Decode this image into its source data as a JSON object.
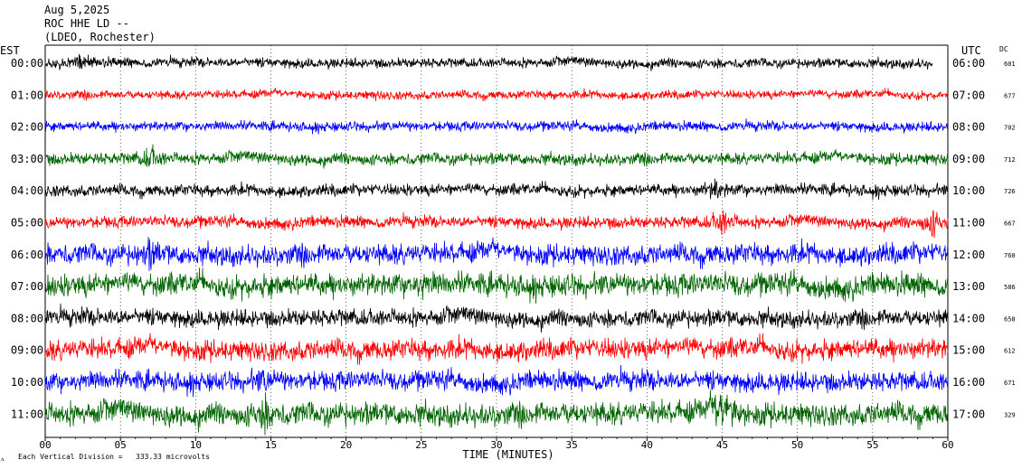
{
  "header": {
    "date": "Aug 5,2025",
    "station": "ROC HHE LD --",
    "network": "(LDEO, Rochester)"
  },
  "left_axis_label": "EST",
  "right_axis_label": "UTC",
  "dc_label": "DC",
  "footer": {
    "scale_prefix": "Each Vertical Division =",
    "scale_value": "333.33 microvolts"
  },
  "colors": {
    "trace_cycle": [
      "#000000",
      "#ff0000",
      "#0000ff",
      "#006400"
    ],
    "grid": "#000000",
    "background": "#ffffff"
  },
  "chart_data": {
    "type": "line",
    "title": "",
    "xlabel": "TIME (MINUTES)",
    "xlim": [
      0,
      60
    ],
    "x_ticks": [
      {
        "value": 0,
        "label": "00"
      },
      {
        "value": 5,
        "label": "05"
      },
      {
        "value": 10,
        "label": "10"
      },
      {
        "value": 15,
        "label": "15"
      },
      {
        "value": 20,
        "label": "20"
      },
      {
        "value": 25,
        "label": "25"
      },
      {
        "value": 30,
        "label": "30"
      },
      {
        "value": 35,
        "label": "35"
      },
      {
        "value": 40,
        "label": "40"
      },
      {
        "value": 45,
        "label": "45"
      },
      {
        "value": 50,
        "label": "50"
      },
      {
        "value": 55,
        "label": "55"
      },
      {
        "value": 60,
        "label": "60"
      }
    ],
    "vertical_grid_interval_minutes": 5,
    "rows": [
      {
        "est": "00:00",
        "utc": "06:00",
        "dc": "601",
        "amplitude": 0.45,
        "end_minute": 59
      },
      {
        "est": "01:00",
        "utc": "07:00",
        "dc": "677",
        "amplitude": 0.4,
        "end_minute": 60
      },
      {
        "est": "02:00",
        "utc": "08:00",
        "dc": "702",
        "amplitude": 0.45,
        "end_minute": 60
      },
      {
        "est": "03:00",
        "utc": "09:00",
        "dc": "712",
        "amplitude": 0.55,
        "end_minute": 60
      },
      {
        "est": "04:00",
        "utc": "10:00",
        "dc": "726",
        "amplitude": 0.55,
        "end_minute": 60
      },
      {
        "est": "05:00",
        "utc": "11:00",
        "dc": "667",
        "amplitude": 0.55,
        "end_minute": 60
      },
      {
        "est": "06:00",
        "utc": "12:00",
        "dc": "760",
        "amplitude": 0.95,
        "end_minute": 60
      },
      {
        "est": "07:00",
        "utc": "13:00",
        "dc": "586",
        "amplitude": 1.05,
        "end_minute": 60
      },
      {
        "est": "08:00",
        "utc": "14:00",
        "dc": "658",
        "amplitude": 0.8,
        "end_minute": 60
      },
      {
        "est": "09:00",
        "utc": "15:00",
        "dc": "612",
        "amplitude": 0.95,
        "end_minute": 60
      },
      {
        "est": "10:00",
        "utc": "16:00",
        "dc": "671",
        "amplitude": 0.9,
        "end_minute": 60
      },
      {
        "est": "11:00",
        "utc": "17:00",
        "dc": "329",
        "amplitude": 1.05,
        "end_minute": 60
      }
    ],
    "events": [
      {
        "row": 0,
        "minute": 2.5,
        "magnitude": 2.0
      },
      {
        "row": 1,
        "minute": 22,
        "magnitude": 1.2
      },
      {
        "row": 3,
        "minute": 7,
        "magnitude": 2.5
      },
      {
        "row": 4,
        "minute": 44.5,
        "magnitude": 2.2
      },
      {
        "row": 5,
        "minute": 45,
        "magnitude": 2.8
      },
      {
        "row": 5,
        "minute": 59,
        "magnitude": 3.0
      },
      {
        "row": 6,
        "minute": 7,
        "magnitude": 1.8
      },
      {
        "row": 7,
        "minute": 25,
        "magnitude": 1.5
      },
      {
        "row": 10,
        "minute": 14.5,
        "magnitude": 1.6
      },
      {
        "row": 11,
        "minute": 45,
        "magnitude": 3.2
      },
      {
        "row": 11,
        "minute": 14.5,
        "magnitude": 2.0
      }
    ]
  }
}
